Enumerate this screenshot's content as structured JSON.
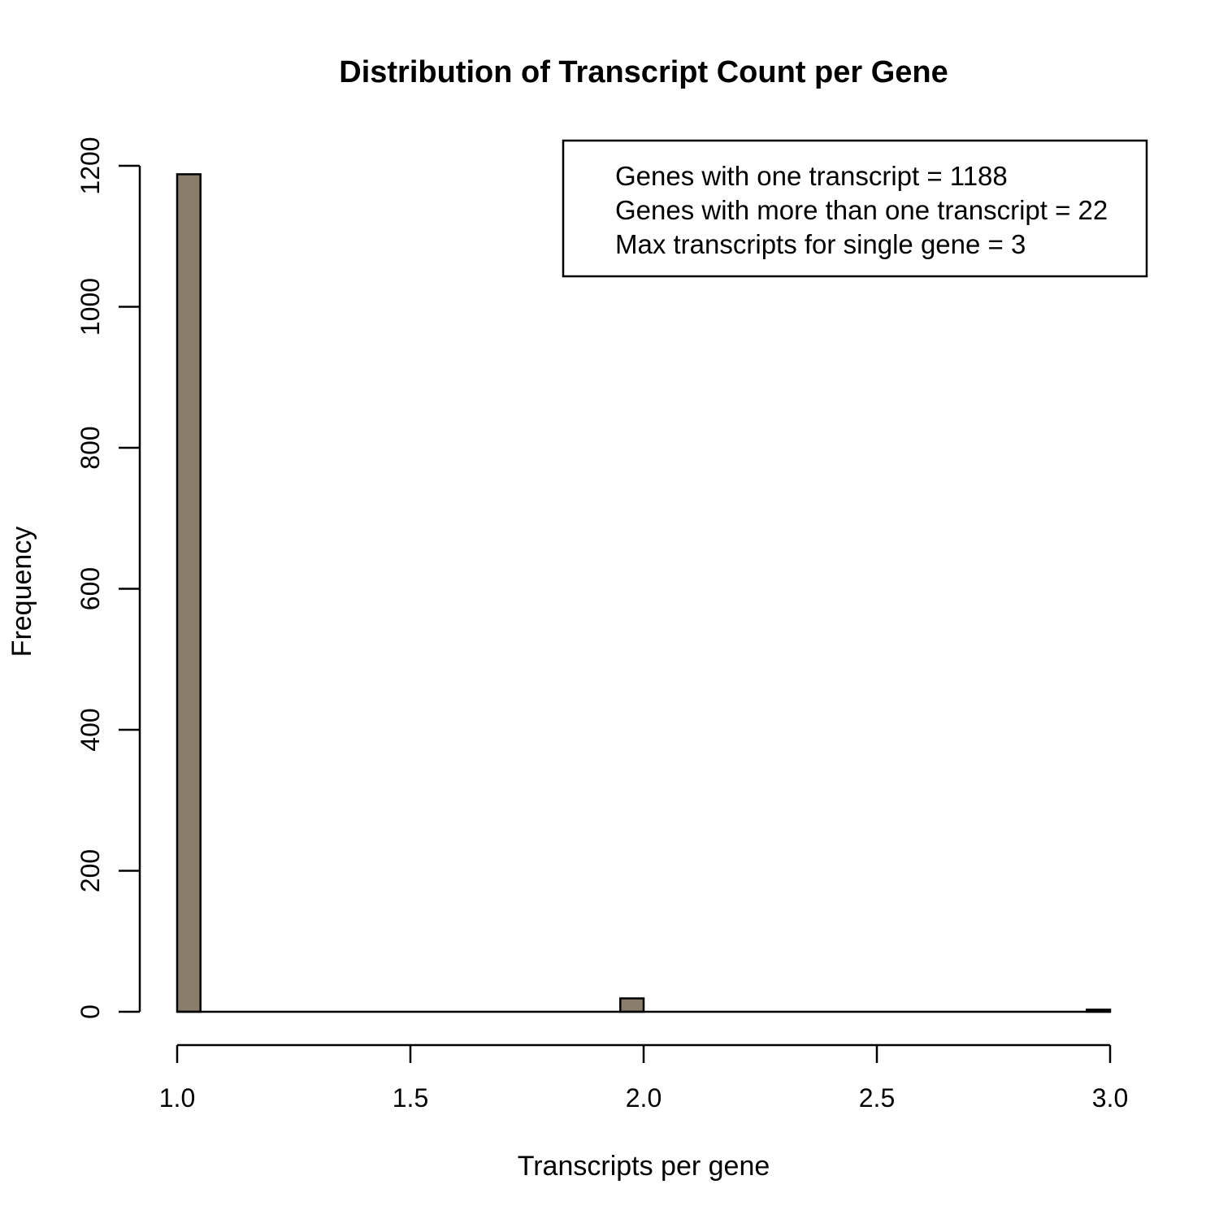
{
  "chart_data": {
    "type": "bar",
    "title": "Distribution of Transcript Count per Gene",
    "xlabel": "Transcripts per gene",
    "ylabel": "Frequency",
    "bars": [
      {
        "x0": 1.0,
        "x1": 1.05,
        "value": 1188
      },
      {
        "x0": 1.95,
        "x1": 2.0,
        "value": 19
      },
      {
        "x0": 2.95,
        "x1": 3.0,
        "value": 3
      }
    ],
    "xlim": [
      1.0,
      3.0
    ],
    "ylim": [
      0,
      1200
    ],
    "x_ticks": [
      1.0,
      1.5,
      2.0,
      2.5,
      3.0
    ],
    "x_tick_labels": [
      "1.0",
      "1.5",
      "2.0",
      "2.5",
      "3.0"
    ],
    "y_ticks": [
      0,
      200,
      400,
      600,
      800,
      1000,
      1200
    ],
    "y_tick_labels": [
      "0",
      "200",
      "400",
      "600",
      "800",
      "1000",
      "1200"
    ],
    "bar_color": "#8b7d6b",
    "grid": false,
    "legend_position": "top-right",
    "legend": [
      "Genes with one transcript = 1188",
      "Genes with more than one transcript = 22",
      "Max transcripts for single gene =  3"
    ]
  }
}
